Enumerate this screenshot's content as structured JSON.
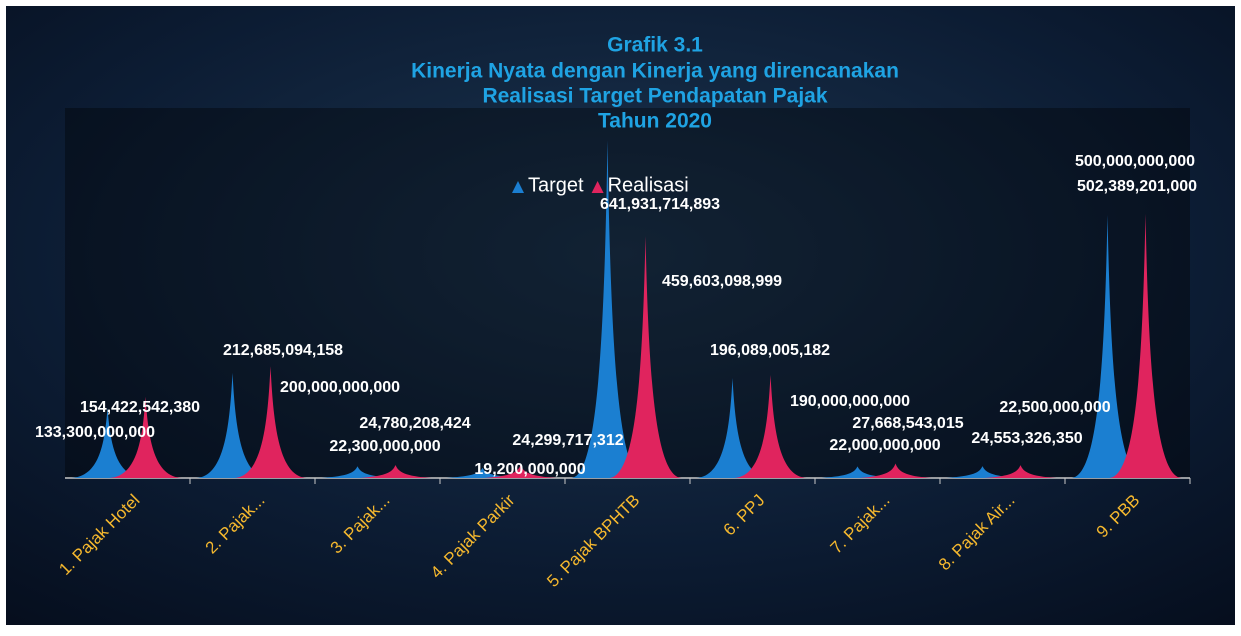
{
  "chart_data": {
    "type": "peak",
    "title": [
      "Grafik 3.1",
      "Kinerja Nyata dengan Kinerja yang direncanakan",
      "Realisasi Target Pendapatan Pajak",
      "Tahun 2020"
    ],
    "categories": [
      "1. Pajak Hotel",
      "2. Pajak...",
      "3. Pajak...",
      "4. Pajak Parkir",
      "5. Pajak BPHTB",
      "6. PPJ",
      "7. Pajak...",
      "8. Pajak Air...",
      "9. PBB"
    ],
    "series": [
      {
        "name": "Target",
        "color": "#1b7fd1",
        "values": [
          133300000000,
          200000000000,
          22300000000,
          19200000000,
          641931714893,
          190000000000,
          22000000000,
          22500000000,
          500000000000
        ],
        "value_labels": [
          "133,300,000,000",
          "200,000,000,000",
          "22,300,000,000",
          "19,200,000,000",
          "641,931,714,893",
          "190,000,000,000",
          "22,000,000,000",
          "22,500,000,000",
          "500,000,000,000"
        ]
      },
      {
        "name": "Realisasi",
        "color": "#e0245e",
        "values": [
          154422542380,
          212685094158,
          24780208424,
          24299717312,
          459603098999,
          196089005182,
          27668543015,
          24553326350,
          502389201000
        ],
        "value_labels": [
          "154,422,542,380",
          "212,685,094,158",
          "24,780,208,424",
          "24,299,717,312",
          "459,603,098,999",
          "196,089,005,182",
          "27,668,543,015",
          "24,553,326,350",
          "502,389,201,000"
        ]
      }
    ],
    "ylim": [
      0,
      650000000000
    ]
  }
}
